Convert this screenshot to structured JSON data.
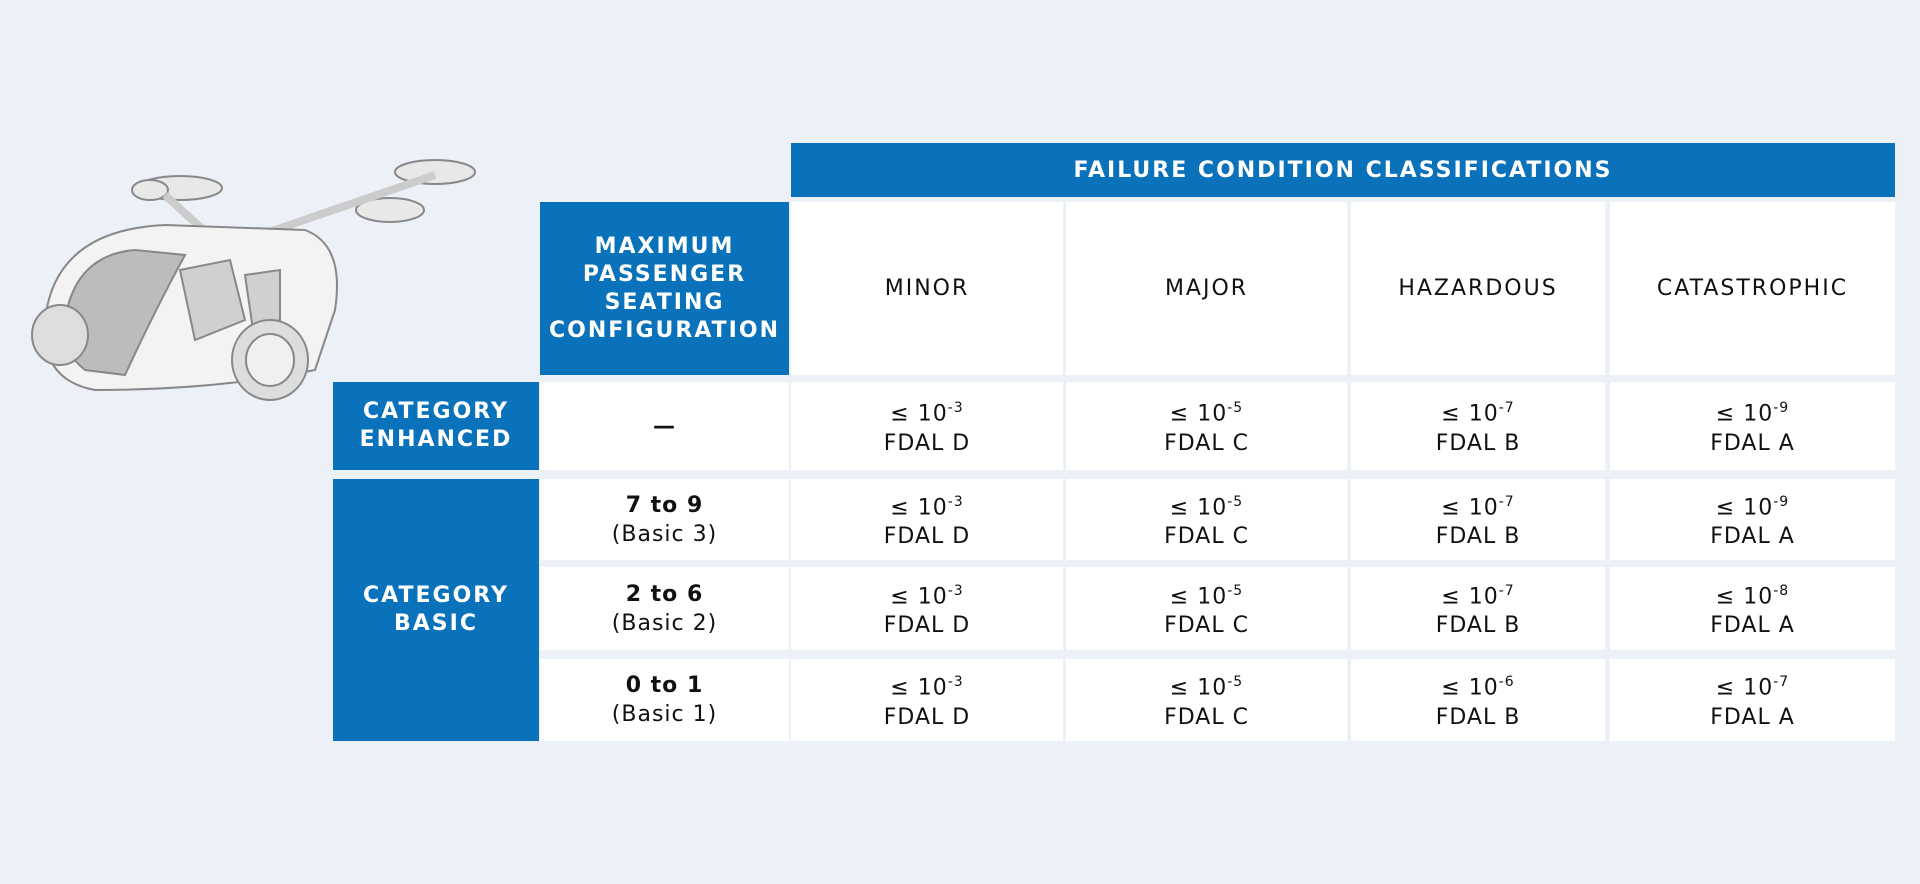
{
  "header": {
    "title": "FAILURE CONDITION CLASSIFICATIONS",
    "seating": "MAXIMUM PASSENGER SEATING CONFIGURATION",
    "columns": [
      "MINOR",
      "MAJOR",
      "HAZARDOUS",
      "CATASTROPHIC"
    ]
  },
  "bound": "≤ 10",
  "groups": [
    {
      "category": "CATEGORY ENHANCED",
      "rows": [
        {
          "seating": "—",
          "cells": [
            {
              "exponent": "-3",
              "level": "FDAL D"
            },
            {
              "exponent": "-5",
              "level": "FDAL C"
            },
            {
              "exponent": "-7",
              "level": "FDAL B"
            },
            {
              "exponent": "-9",
              "level": "FDAL A"
            }
          ]
        }
      ]
    },
    {
      "category": "CATEGORY BASIC",
      "rows": [
        {
          "seating": "7 to 9",
          "note": "(Basic 3)",
          "cells": [
            {
              "exponent": "-3",
              "level": "FDAL D"
            },
            {
              "exponent": "-5",
              "level": "FDAL C"
            },
            {
              "exponent": "-7",
              "level": "FDAL B"
            },
            {
              "exponent": "-9",
              "level": "FDAL A"
            }
          ]
        },
        {
          "seating": "2 to 6",
          "note": "(Basic 2)",
          "cells": [
            {
              "exponent": "-3",
              "level": "FDAL D"
            },
            {
              "exponent": "-5",
              "level": "FDAL C"
            },
            {
              "exponent": "-7",
              "level": "FDAL B"
            },
            {
              "exponent": "-8",
              "level": "FDAL A"
            }
          ]
        },
        {
          "seating": "0 to 1",
          "note": "(Basic 1)",
          "cells": [
            {
              "exponent": "-3",
              "level": "FDAL D"
            },
            {
              "exponent": "-5",
              "level": "FDAL C"
            },
            {
              "exponent": "-6",
              "level": "FDAL B"
            },
            {
              "exponent": "-7",
              "level": "FDAL A"
            }
          ]
        }
      ]
    }
  ]
}
